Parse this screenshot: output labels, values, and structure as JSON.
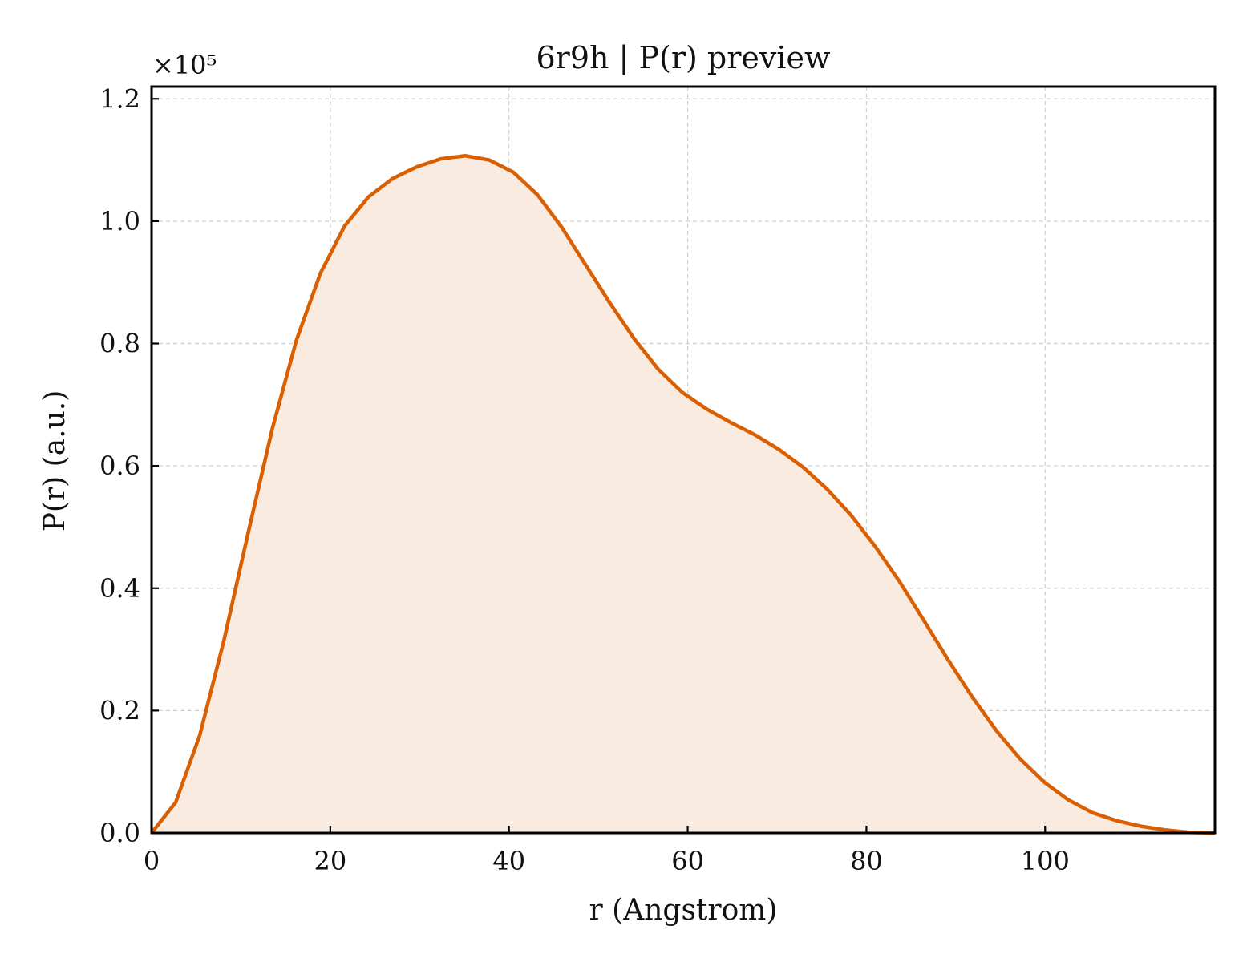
{
  "chart_data": {
    "type": "area",
    "title": "6r9h | P(r) preview",
    "xlabel": "r (Angstrom)",
    "ylabel": "P(r) (a.u.)",
    "y_offset_text": "×10⁵",
    "xlim": [
      0,
      119
    ],
    "ylim": [
      0,
      1.22
    ],
    "xticks": [
      0,
      20,
      40,
      60,
      80,
      100
    ],
    "xtick_labels": [
      "0",
      "20",
      "40",
      "60",
      "80",
      "100"
    ],
    "yticks": [
      0.0,
      0.2,
      0.4,
      0.6,
      0.8,
      1.0,
      1.2
    ],
    "ytick_labels": [
      "0.0",
      "0.2",
      "0.4",
      "0.6",
      "0.8",
      "1.0",
      "1.2"
    ],
    "grid": true,
    "series": [
      {
        "color": "#d95f02",
        "fill_color": "#f9ebdf",
        "x": [
          0,
          2.7,
          5.4,
          8.1,
          10.8,
          13.5,
          16.2,
          18.9,
          21.6,
          24.3,
          27.0,
          29.7,
          32.4,
          35.1,
          37.8,
          40.5,
          43.2,
          45.9,
          48.6,
          51.3,
          54.0,
          56.7,
          59.4,
          62.1,
          64.8,
          67.5,
          70.2,
          72.9,
          75.6,
          78.3,
          81.0,
          83.7,
          86.4,
          89.1,
          91.8,
          94.5,
          97.2,
          99.9,
          102.6,
          105.3,
          108.0,
          110.7,
          113.4,
          116.1,
          119.0
        ],
        "y": [
          0.0,
          0.05,
          0.16,
          0.315,
          0.49,
          0.66,
          0.805,
          0.915,
          0.992,
          1.04,
          1.07,
          1.089,
          1.102,
          1.107,
          1.1,
          1.08,
          1.043,
          0.99,
          0.928,
          0.866,
          0.808,
          0.758,
          0.72,
          0.693,
          0.671,
          0.651,
          0.627,
          0.598,
          0.562,
          0.519,
          0.468,
          0.411,
          0.348,
          0.284,
          0.223,
          0.168,
          0.121,
          0.083,
          0.054,
          0.033,
          0.02,
          0.011,
          0.005,
          0.001,
          0.0
        ]
      }
    ]
  }
}
